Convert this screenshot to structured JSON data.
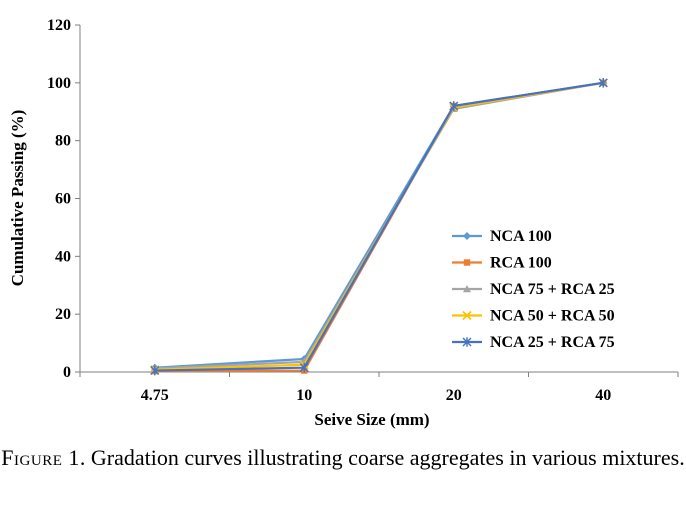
{
  "chart_data": {
    "type": "line",
    "categories": [
      "4.75",
      "10",
      "20",
      "40"
    ],
    "xlabel": "Seive Size (mm)",
    "ylabel": "Cumulative Passing (%)",
    "ylim": [
      0,
      120
    ],
    "yticks": [
      "0",
      "20",
      "40",
      "60",
      "80",
      "100",
      "120"
    ],
    "grid": false,
    "legend": "bottom-right",
    "series": [
      {
        "name": "NCA 100",
        "color": "#5b9bd5",
        "marker": "diamond",
        "values": [
          1.5,
          4.5,
          92,
          100
        ]
      },
      {
        "name": "RCA 100",
        "color": "#ed7d31",
        "marker": "square",
        "values": [
          0.3,
          0.5,
          92,
          100
        ]
      },
      {
        "name": "NCA 75 + RCA 25",
        "color": "#a5a5a5",
        "marker": "triangle",
        "values": [
          1.2,
          3.5,
          91,
          100
        ]
      },
      {
        "name": "NCA 50 + RCA 50",
        "color": "#ffc000",
        "marker": "x",
        "values": [
          0.8,
          2.5,
          91.5,
          100
        ]
      },
      {
        "name": "NCA 25 + RCA 75",
        "color": "#4472c4",
        "marker": "star",
        "values": [
          0.5,
          1.5,
          92,
          100
        ]
      }
    ]
  },
  "caption": {
    "label": "Figure 1",
    "text": ". Gradation curves illustrating coarse aggregates in various mixtures."
  }
}
